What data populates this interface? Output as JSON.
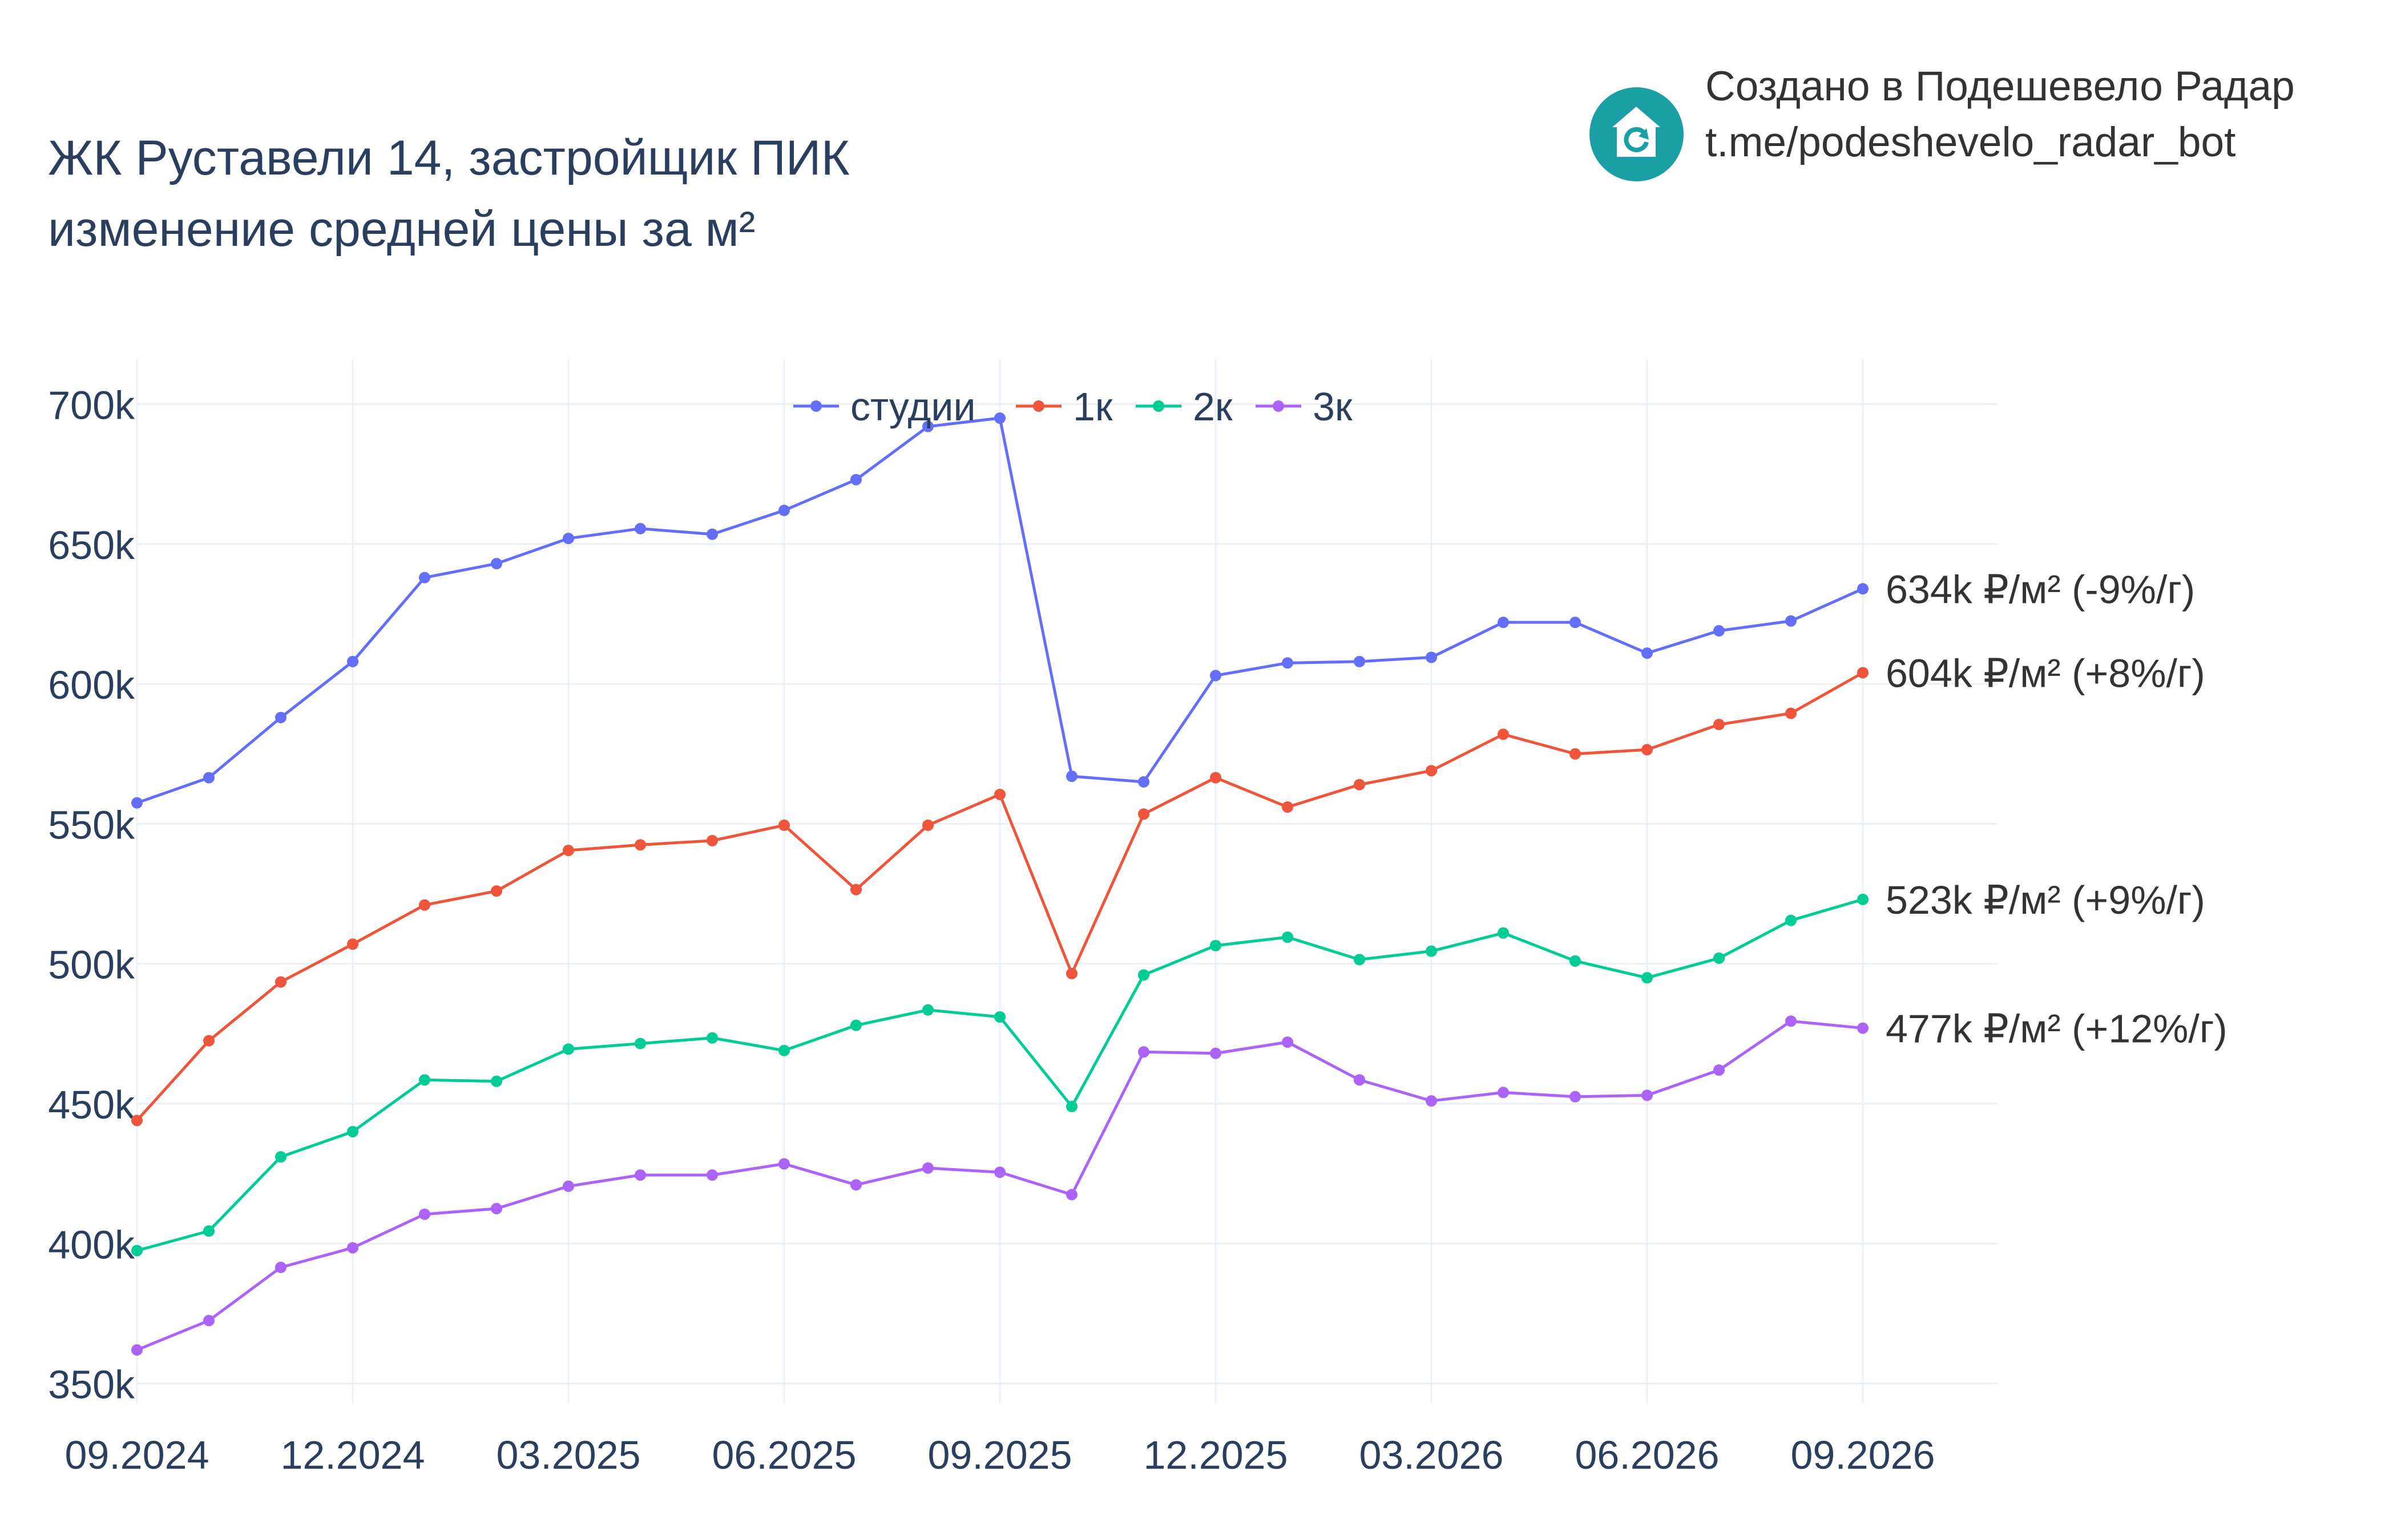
{
  "header": {
    "title_line1": "ЖК Руставели 14, застройщик ПИК",
    "title_line2": "изменение средней цены за м²",
    "credit_line1": "Создано в Подешевело Радар",
    "credit_line2": "t.me/podeshevelo_radar_bot",
    "logo_icon": "house-arrow-icon"
  },
  "chart_data": {
    "type": "line",
    "title": "ЖК Руставели 14, застройщик ПИК изменение средней цены за м²",
    "xlabel": "",
    "ylabel": "",
    "x": [
      "09.2024",
      "10.2024",
      "11.2024",
      "12.2024",
      "01.2025",
      "02.2025",
      "03.2025",
      "04.2025",
      "05.2025",
      "06.2025",
      "07.2025",
      "08.2025",
      "09.2025",
      "10.2025",
      "11.2025",
      "12.2025",
      "01.2026",
      "02.2026",
      "03.2026",
      "04.2026",
      "05.2026",
      "06.2026",
      "07.2026",
      "08.2026",
      "09.2026"
    ],
    "x_tick_labels": [
      "09.2024",
      "12.2024",
      "03.2025",
      "06.2025",
      "09.2025",
      "12.2025",
      "03.2026",
      "06.2026",
      "09.2026"
    ],
    "y_tick_values": [
      350000,
      400000,
      450000,
      500000,
      550000,
      600000,
      650000,
      700000
    ],
    "y_tick_labels": [
      "350k",
      "400k",
      "450k",
      "500k",
      "550k",
      "600k",
      "650k",
      "700k"
    ],
    "ylim": [
      343000,
      716000
    ],
    "grid": true,
    "legend_position": "top-center",
    "series": [
      {
        "name": "студии",
        "color": "#636efa",
        "values": [
          557500,
          566500,
          588000,
          608000,
          638000,
          643000,
          652000,
          655500,
          653500,
          662000,
          673000,
          692000,
          695000,
          567000,
          565000,
          603000,
          607500,
          608000,
          609500,
          622000,
          622000,
          611000,
          619000,
          622500,
          634000
        ],
        "end_label": "634k ₽/м² (-9%/г)"
      },
      {
        "name": "1к",
        "color": "#ef553b",
        "values": [
          444000,
          472500,
          493500,
          507000,
          521000,
          526000,
          540500,
          542500,
          544000,
          549500,
          526500,
          549500,
          560500,
          496500,
          553500,
          566500,
          556000,
          564000,
          569000,
          582000,
          575000,
          576500,
          585500,
          589500,
          604000
        ],
        "end_label": "604k ₽/м² (+8%/г)"
      },
      {
        "name": "2к",
        "color": "#00cc96",
        "values": [
          397500,
          404500,
          431000,
          440000,
          458500,
          458000,
          469500,
          471500,
          473500,
          469000,
          478000,
          483500,
          481000,
          449000,
          496000,
          506500,
          509500,
          501500,
          504500,
          511000,
          501000,
          495000,
          502000,
          515500,
          523000
        ],
        "end_label": "523k ₽/м² (+9%/г)"
      },
      {
        "name": "3к",
        "color": "#ab63fa",
        "values": [
          362000,
          372500,
          391500,
          398500,
          410500,
          412500,
          420500,
          424500,
          424500,
          428500,
          421000,
          427000,
          425500,
          417500,
          468500,
          468000,
          472000,
          458500,
          451000,
          454000,
          452500,
          453000,
          462000,
          479500,
          477000
        ],
        "end_label": "477k ₽/м² (+12%/г)"
      }
    ]
  }
}
